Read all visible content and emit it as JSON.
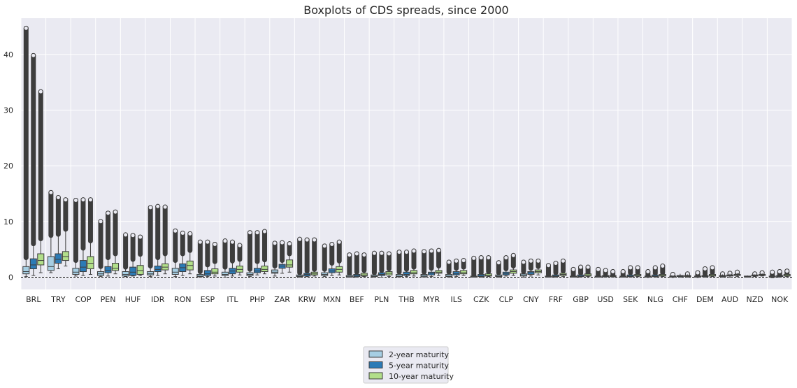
{
  "chart_data": {
    "type": "boxplot",
    "title": "Boxplots of CDS spreads, since 2000",
    "xlabel": "",
    "ylabel": "",
    "ylim": [
      -2.2,
      46.5
    ],
    "yticks": [
      0,
      10,
      20,
      30,
      40
    ],
    "grid": true,
    "zero_line": "dashed",
    "legend_placement": "bottom-center",
    "categories": [
      "BRL",
      "TRY",
      "COP",
      "PEN",
      "HUF",
      "IDR",
      "RON",
      "ESP",
      "ITL",
      "PHP",
      "ZAR",
      "KRW",
      "MXN",
      "BEF",
      "PLN",
      "THB",
      "MYR",
      "ILS",
      "CZK",
      "CLP",
      "CNY",
      "FRF",
      "GBP",
      "USD",
      "SEK",
      "NLG",
      "CHF",
      "DEM",
      "AUD",
      "NZD",
      "NOK"
    ],
    "series": [
      {
        "name": "2-year maturity",
        "color": "#a6cee3",
        "boxes": [
          [
            0.1,
            0.6,
            1.0,
            1.9,
            3.5,
            44.7
          ],
          [
            0.8,
            1.2,
            1.9,
            3.7,
            7.5,
            15.2
          ],
          [
            0.2,
            0.5,
            0.9,
            1.6,
            3.0,
            13.8
          ],
          [
            0.1,
            0.3,
            0.6,
            1.0,
            1.9,
            10.0
          ],
          [
            0.1,
            0.2,
            0.5,
            1.0,
            1.8,
            7.6
          ],
          [
            0.1,
            0.4,
            0.6,
            1.0,
            2.0,
            12.5
          ],
          [
            0.1,
            0.5,
            0.9,
            1.6,
            3.0,
            8.3
          ],
          [
            0.0,
            0.1,
            0.2,
            0.5,
            1.0,
            6.3
          ],
          [
            0.0,
            0.3,
            0.5,
            0.9,
            1.8,
            6.5
          ],
          [
            0.1,
            0.3,
            0.5,
            0.8,
            1.4,
            8.0
          ],
          [
            0.2,
            0.7,
            0.9,
            1.3,
            2.0,
            6.1
          ],
          [
            0.0,
            0.1,
            0.2,
            0.4,
            0.8,
            6.8
          ],
          [
            0.1,
            0.3,
            0.5,
            0.8,
            1.4,
            5.6
          ],
          [
            0.0,
            0.0,
            0.1,
            0.3,
            0.6,
            4.0
          ],
          [
            0.0,
            0.1,
            0.2,
            0.4,
            0.8,
            4.3
          ],
          [
            0.0,
            0.1,
            0.2,
            0.5,
            0.9,
            4.5
          ],
          [
            0.0,
            0.1,
            0.3,
            0.5,
            0.9,
            4.6
          ],
          [
            0.0,
            0.1,
            0.2,
            0.5,
            0.9,
            2.7
          ],
          [
            0.0,
            0.0,
            0.1,
            0.2,
            0.4,
            3.4
          ],
          [
            0.0,
            0.1,
            0.2,
            0.4,
            0.8,
            2.6
          ],
          [
            0.0,
            0.2,
            0.4,
            0.6,
            1.0,
            2.7
          ],
          [
            0.0,
            0.0,
            0.1,
            0.2,
            0.4,
            2.1
          ],
          [
            0.0,
            0.0,
            0.1,
            0.2,
            0.4,
            1.4
          ],
          [
            0.0,
            0.0,
            0.1,
            0.2,
            0.4,
            1.4
          ],
          [
            0.0,
            0.0,
            0.1,
            0.2,
            0.4,
            1.0
          ],
          [
            0.0,
            0.0,
            0.1,
            0.2,
            0.3,
            1.0
          ],
          [
            0.0,
            0.0,
            0.1,
            0.2,
            0.3,
            0.5
          ],
          [
            0.0,
            0.0,
            0.1,
            0.2,
            0.3,
            0.8
          ],
          [
            0.0,
            0.1,
            0.2,
            0.3,
            0.5,
            0.6
          ],
          [
            0.0,
            0.0,
            0.1,
            0.2,
            0.3,
            0.3
          ],
          [
            -0.1,
            0.0,
            0.1,
            0.2,
            0.3,
            0.9
          ]
        ]
      },
      {
        "name": "5-year maturity",
        "color": "#2c7bb6",
        "boxes": [
          [
            0.3,
            1.5,
            2.2,
            3.3,
            6.0,
            39.8
          ],
          [
            1.5,
            2.5,
            3.2,
            4.2,
            7.7,
            14.3
          ],
          [
            0.3,
            1.0,
            1.8,
            3.0,
            5.2,
            13.9
          ],
          [
            0.2,
            0.8,
            1.2,
            1.9,
            3.5,
            11.5
          ],
          [
            0.2,
            0.3,
            0.9,
            1.8,
            3.2,
            7.5
          ],
          [
            0.3,
            1.0,
            1.4,
            2.0,
            3.5,
            12.7
          ],
          [
            0.3,
            1.0,
            1.7,
            2.4,
            4.2,
            7.9
          ],
          [
            0.1,
            0.3,
            0.6,
            1.2,
            2.2,
            6.3
          ],
          [
            0.2,
            0.6,
            1.1,
            1.6,
            2.9,
            6.3
          ],
          [
            0.4,
            0.8,
            1.1,
            1.6,
            2.8,
            8.0
          ],
          [
            0.7,
            1.6,
            2.0,
            2.3,
            3.0,
            6.2
          ],
          [
            0.1,
            0.2,
            0.5,
            0.7,
            1.1,
            6.7
          ],
          [
            0.3,
            0.8,
            1.1,
            1.5,
            2.5,
            5.9
          ],
          [
            0.0,
            0.1,
            0.3,
            0.5,
            0.9,
            4.2
          ],
          [
            0.0,
            0.3,
            0.5,
            0.8,
            1.2,
            4.3
          ],
          [
            0.1,
            0.3,
            0.5,
            0.9,
            1.4,
            4.5
          ],
          [
            0.1,
            0.4,
            0.7,
            0.9,
            1.6,
            4.7
          ],
          [
            0.1,
            0.4,
            0.6,
            1.0,
            1.6,
            2.9
          ],
          [
            0.0,
            0.1,
            0.2,
            0.5,
            0.8,
            3.5
          ],
          [
            0.2,
            0.4,
            0.6,
            0.9,
            1.5,
            3.5
          ],
          [
            0.2,
            0.5,
            0.8,
            1.0,
            1.6,
            2.9
          ],
          [
            0.0,
            0.1,
            0.2,
            0.4,
            0.8,
            2.5
          ],
          [
            0.0,
            0.1,
            0.2,
            0.4,
            0.7,
            1.8
          ],
          [
            0.0,
            0.1,
            0.2,
            0.3,
            0.6,
            1.2
          ],
          [
            0.0,
            0.1,
            0.2,
            0.4,
            0.8,
            1.7
          ],
          [
            0.0,
            0.1,
            0.2,
            0.4,
            0.7,
            1.7
          ],
          [
            0.0,
            0.1,
            0.2,
            0.3,
            0.6,
            0.6
          ],
          [
            0.0,
            0.1,
            0.2,
            0.3,
            0.6,
            1.5
          ],
          [
            0.0,
            0.2,
            0.3,
            0.4,
            0.6,
            0.7
          ],
          [
            0.1,
            0.2,
            0.3,
            0.4,
            0.5,
            0.6
          ],
          [
            0.0,
            0.1,
            0.2,
            0.3,
            0.5,
            1.0
          ]
        ]
      },
      {
        "name": "10-year maturity",
        "color": "#b2df8a",
        "boxes": [
          [
            0.8,
            2.2,
            3.0,
            4.2,
            6.9,
            33.3
          ],
          [
            2.0,
            3.0,
            3.7,
            4.6,
            8.6,
            13.9
          ],
          [
            0.5,
            1.5,
            2.5,
            3.7,
            6.5,
            13.9
          ],
          [
            0.6,
            1.2,
            1.6,
            2.5,
            4.2,
            11.7
          ],
          [
            0.3,
            0.5,
            1.2,
            2.1,
            4.1,
            7.2
          ],
          [
            0.6,
            1.3,
            1.8,
            2.4,
            4.2,
            12.6
          ],
          [
            0.6,
            1.3,
            2.1,
            2.9,
            4.8,
            7.8
          ],
          [
            0.2,
            0.6,
            0.9,
            1.5,
            2.8,
            5.9
          ],
          [
            0.4,
            0.9,
            1.4,
            2.0,
            3.2,
            5.7
          ],
          [
            0.6,
            1.0,
            1.4,
            2.0,
            3.1,
            8.2
          ],
          [
            0.9,
            1.8,
            2.2,
            3.1,
            4.2,
            6.0
          ],
          [
            0.2,
            0.4,
            0.6,
            0.9,
            1.4,
            6.7
          ],
          [
            0.4,
            0.9,
            1.4,
            1.9,
            2.9,
            6.3
          ],
          [
            0.1,
            0.2,
            0.4,
            0.7,
            1.2,
            4.0
          ],
          [
            0.1,
            0.4,
            0.7,
            1.0,
            1.5,
            4.2
          ],
          [
            0.2,
            0.6,
            0.8,
            1.2,
            1.8,
            4.7
          ],
          [
            0.3,
            0.7,
            0.9,
            1.2,
            2.0,
            4.8
          ],
          [
            0.3,
            0.6,
            0.8,
            1.2,
            1.8,
            3.0
          ],
          [
            0.1,
            0.2,
            0.3,
            0.6,
            1.0,
            3.5
          ],
          [
            0.3,
            0.7,
            1.0,
            1.3,
            2.0,
            3.9
          ],
          [
            0.4,
            0.8,
            1.0,
            1.3,
            1.9,
            2.9
          ],
          [
            0.1,
            0.3,
            0.5,
            0.7,
            1.1,
            2.9
          ],
          [
            0.1,
            0.2,
            0.4,
            0.6,
            0.8,
            1.8
          ],
          [
            0.0,
            0.1,
            0.2,
            0.3,
            0.5,
            1.0
          ],
          [
            0.1,
            0.2,
            0.3,
            0.5,
            0.8,
            1.7
          ],
          [
            0.1,
            0.2,
            0.3,
            0.5,
            0.8,
            2.0
          ],
          [
            0.0,
            0.1,
            0.2,
            0.3,
            0.5,
            0.6
          ],
          [
            0.1,
            0.2,
            0.3,
            0.5,
            0.8,
            1.7
          ],
          [
            0.1,
            0.3,
            0.4,
            0.5,
            0.7,
            0.9
          ],
          [
            0.2,
            0.3,
            0.4,
            0.5,
            0.7,
            0.8
          ],
          [
            0.1,
            0.2,
            0.3,
            0.5,
            0.7,
            1.1
          ]
        ]
      }
    ]
  }
}
